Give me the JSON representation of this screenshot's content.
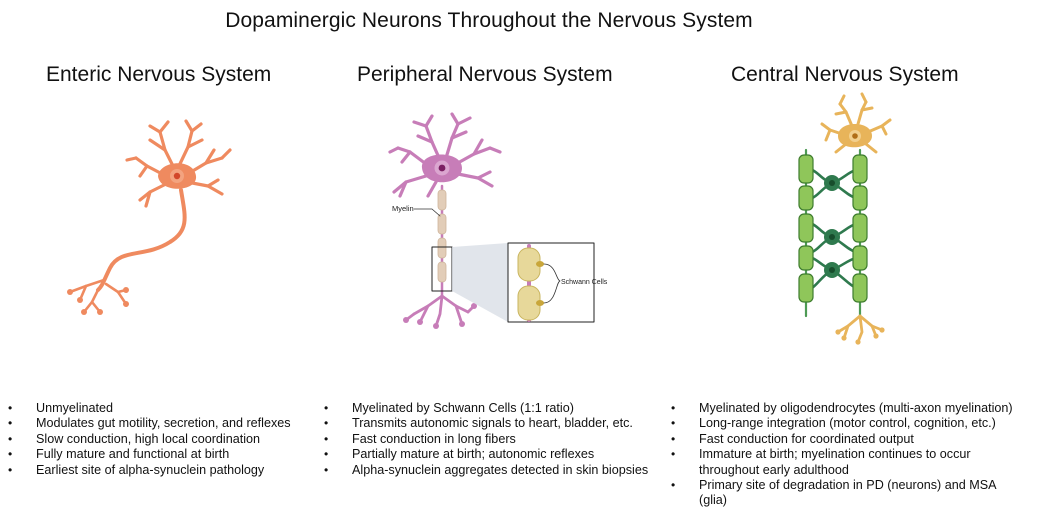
{
  "title": "Dopaminergic Neurons Throughout the Nervous System",
  "columns": [
    {
      "heading": "Enteric Nervous System",
      "bullets": [
        "Unmyelinated",
        "Modulates gut motility, secretion, and reflexes",
        "Slow conduction, high local coordination",
        "Fully mature and functional at birth",
        "Earliest site of alpha-synuclein pathology"
      ]
    },
    {
      "heading": "Peripheral Nervous System",
      "bullets": [
        "Myelinated by Schwann Cells (1:1 ratio)",
        "Transmits autonomic signals to heart, bladder, etc.",
        "Fast conduction in long fibers",
        "Partially mature at birth; autonomic reflexes",
        "Alpha-synuclein aggregates detected in skin biopsies"
      ]
    },
    {
      "heading": "Central Nervous System",
      "bullets": [
        "Myelinated by oligodendrocytes (multi-axon myelination)",
        "Long-range integration (motor control, cognition, etc.)",
        "Fast conduction for coordinated output",
        "Immature at birth; myelination continues to occur throughout early adulthood",
        "Primary site of degradation in PD (neurons) and MSA (glia)"
      ]
    }
  ],
  "labels": {
    "myelin": "Myelin",
    "schwann": "Schwann Cells"
  },
  "colors": {
    "enteric_neuron": "#ef8a5f",
    "peripheral_neuron": "#c77db8",
    "myelin_sheath": "#e2cdb8",
    "cns_soma": "#e8b45a",
    "oligodendrocyte": "#2f7a4e",
    "cns_myelin": "#8fc65a",
    "zoom_box_fill": "#d9dee6"
  }
}
